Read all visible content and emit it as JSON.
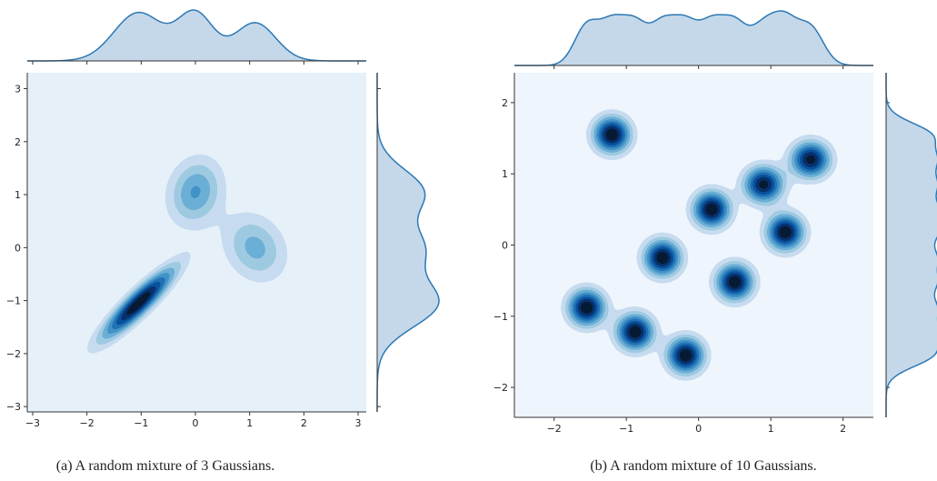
{
  "chart_data": [
    {
      "type": "kde-joint",
      "caption": "(a) A random mixture of 3 Gaussians.",
      "xlim": [
        -3.1,
        3.15
      ],
      "ylim": [
        -3.1,
        3.3
      ],
      "x_ticks": [
        -3,
        -2,
        -1,
        0,
        1,
        2,
        3
      ],
      "y_ticks": [
        -3,
        -2,
        -1,
        0,
        1,
        2,
        3
      ],
      "x_tick_labels": [
        "−3",
        "−2",
        "−1",
        "0",
        "1",
        "2",
        "3"
      ],
      "y_tick_labels": [
        "−3",
        "−2",
        "−1",
        "0",
        "1",
        "2",
        "3"
      ],
      "background_color": "#e6f0f9",
      "contour_colors": [
        "#c6dbef",
        "#9ecae1",
        "#6baed6",
        "#4292c6",
        "#2171b5",
        "#08519c",
        "#08306b",
        "#061a33"
      ],
      "marginal_color": "#2c78b4",
      "components": [
        {
          "mx": -1.05,
          "my": -1.05,
          "sx": 0.45,
          "sy": 0.45,
          "rho": 0.9,
          "weight": 0.42
        },
        {
          "mx": 0.0,
          "my": 1.05,
          "sx": 0.33,
          "sy": 0.42,
          "rho": 0.15,
          "weight": 0.3
        },
        {
          "mx": 1.1,
          "my": 0.0,
          "sx": 0.38,
          "sy": 0.42,
          "rho": -0.2,
          "weight": 0.28
        }
      ]
    },
    {
      "type": "kde-joint",
      "caption": "(b) A random mixture of 10 Gaussians.",
      "xlim": [
        -2.55,
        2.42
      ],
      "ylim": [
        -2.42,
        2.42
      ],
      "x_ticks": [
        -2,
        -1,
        0,
        1,
        2
      ],
      "y_ticks": [
        -2,
        -1,
        0,
        1,
        2
      ],
      "x_tick_labels": [
        "−2",
        "−1",
        "0",
        "1",
        "2"
      ],
      "y_tick_labels": [
        "−2",
        "−1",
        "0",
        "1",
        "2"
      ],
      "background_color": "#eef5fc",
      "contour_colors": [
        "#c6dbef",
        "#9ecae1",
        "#6baed6",
        "#4292c6",
        "#2171b5",
        "#08519c",
        "#08306b",
        "#061a33"
      ],
      "marginal_color": "#2c78b4",
      "components": [
        {
          "mx": -1.2,
          "my": 1.55,
          "sx": 0.17,
          "sy": 0.17,
          "rho": 0,
          "weight": 0.1
        },
        {
          "mx": 1.55,
          "my": 1.2,
          "sx": 0.18,
          "sy": 0.17,
          "rho": 0,
          "weight": 0.1
        },
        {
          "mx": 0.9,
          "my": 0.85,
          "sx": 0.18,
          "sy": 0.17,
          "rho": 0,
          "weight": 0.1
        },
        {
          "mx": 0.18,
          "my": 0.5,
          "sx": 0.17,
          "sy": 0.17,
          "rho": 0,
          "weight": 0.1
        },
        {
          "mx": 1.2,
          "my": 0.18,
          "sx": 0.17,
          "sy": 0.17,
          "rho": 0,
          "weight": 0.1
        },
        {
          "mx": -0.5,
          "my": -0.18,
          "sx": 0.17,
          "sy": 0.17,
          "rho": 0,
          "weight": 0.1
        },
        {
          "mx": 0.5,
          "my": -0.52,
          "sx": 0.17,
          "sy": 0.17,
          "rho": 0,
          "weight": 0.1
        },
        {
          "mx": -1.55,
          "my": -0.88,
          "sx": 0.17,
          "sy": 0.17,
          "rho": 0,
          "weight": 0.1
        },
        {
          "mx": -0.88,
          "my": -1.22,
          "sx": 0.17,
          "sy": 0.17,
          "rho": 0,
          "weight": 0.1
        },
        {
          "mx": -0.18,
          "my": -1.55,
          "sx": 0.17,
          "sy": 0.17,
          "rho": 0,
          "weight": 0.1
        }
      ]
    }
  ]
}
